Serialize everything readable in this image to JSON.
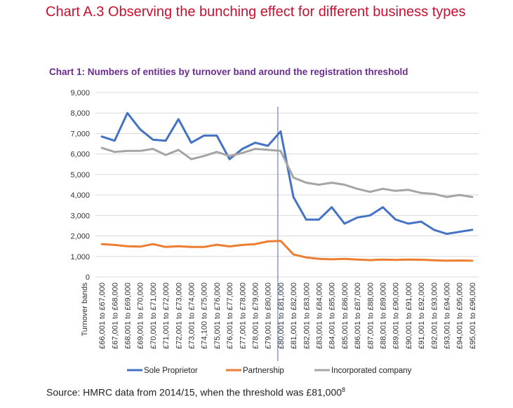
{
  "page": {
    "heading": "Chart A.3 Observing the bunching effect for different business types",
    "source_prefix": "Source: HMRC data from 2014/15, when the threshold was £81,000",
    "source_note": "8"
  },
  "colors": {
    "sole": "#4472c4",
    "partnership": "#ed7d31",
    "incorporated": "#a5a5a5",
    "title": "#6b2c91",
    "heading": "#c8102e",
    "threshold_line": "#4472c4"
  },
  "chart_data": {
    "type": "line",
    "title": "Chart 1: Numbers of entities by turnover band around the registration threshold",
    "xlabel": "Turnover bands",
    "ylabel": "",
    "ylim": [
      0,
      9000
    ],
    "yticks": [
      0,
      1000,
      2000,
      3000,
      4000,
      5000,
      6000,
      7000,
      8000,
      9000
    ],
    "ytick_labels": [
      "0",
      "1,000",
      "2,000",
      "3,000",
      "4,000",
      "5,000",
      "6,000",
      "7,000",
      "8,000",
      "9,000"
    ],
    "grid": true,
    "legend": "bottom",
    "threshold_category": "£80,001 to £81,000",
    "categories": [
      "£66,001 to £67,000",
      "£67,001 to £68,000",
      "£68,001 to £69,000",
      "£69,001 to £70,000",
      "£70,001 to £71,000",
      "£71,001 to £72,000",
      "£72,001 to £73,000",
      "£73,001 to £74,000",
      "£74,100 to £75,000",
      "£75,001 to £76,000",
      "£76,001 to £77,000",
      "£77,001 to £78,000",
      "£78,001 to £79,000",
      "£79,001 to £80,000",
      "£80,001 to £81,000",
      "£81,001 to £82,000",
      "£82,001 to £83,000",
      "£83,001 to £84,000",
      "£84,001 to £85,000",
      "£85,001 to £86,000",
      "£86,001 to £87,000",
      "£87,001 to £88,000",
      "£88,001 to £89,000",
      "£89,001 to £90,000",
      "£90,001 to £91,000",
      "£91,001 to £92,000",
      "£92,001 to £93,000",
      "£93,001 to £94,000",
      "£94,001 to £95,000",
      "£95,001 to £96,000"
    ],
    "series": [
      {
        "name": "Sole Proprietor",
        "color_key": "sole",
        "values": [
          6850,
          6650,
          8000,
          7200,
          6700,
          6650,
          7700,
          6550,
          6900,
          6900,
          5750,
          6250,
          6550,
          6400,
          7100,
          3900,
          2800,
          2800,
          3400,
          2600,
          2900,
          3000,
          3400,
          2800,
          2600,
          2700,
          2300,
          2100,
          2200,
          2300
        ]
      },
      {
        "name": "Partnership",
        "color_key": "partnership",
        "values": [
          1600,
          1560,
          1500,
          1480,
          1600,
          1460,
          1500,
          1460,
          1460,
          1570,
          1490,
          1560,
          1600,
          1730,
          1760,
          1100,
          950,
          880,
          860,
          880,
          850,
          820,
          850,
          830,
          850,
          840,
          810,
          790,
          800,
          790
        ]
      },
      {
        "name": "Incorporated company",
        "color_key": "incorporated",
        "values": [
          6300,
          6100,
          6150,
          6150,
          6250,
          5950,
          6200,
          5750,
          5900,
          6100,
          5900,
          6050,
          6250,
          6200,
          6150,
          4850,
          4600,
          4500,
          4600,
          4500,
          4300,
          4150,
          4300,
          4200,
          4250,
          4100,
          4050,
          3900,
          4000,
          3900
        ]
      }
    ]
  }
}
